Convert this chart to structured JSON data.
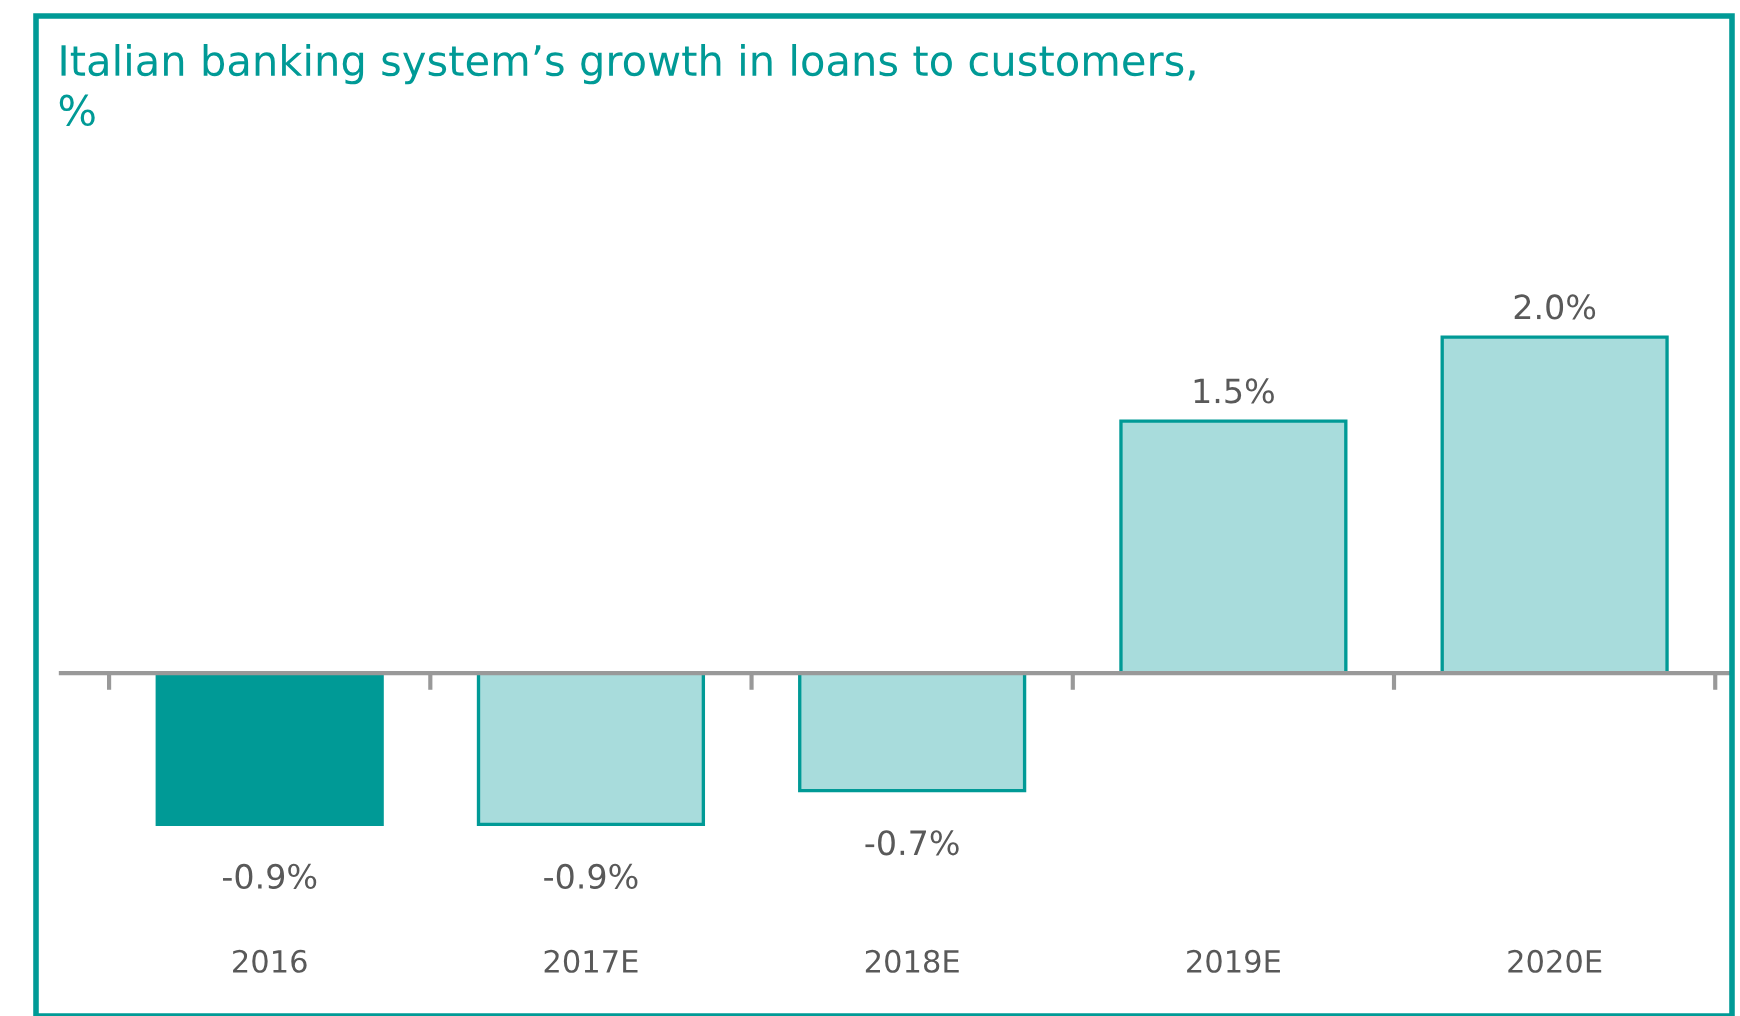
{
  "chart_data": {
    "type": "bar",
    "title": "Italian banking system’s growth in loans to customers,\n%",
    "categories": [
      "2016",
      "2017E",
      "2018E",
      "2019E",
      "2020E"
    ],
    "values": [
      -0.9,
      -0.9,
      -0.7,
      1.5,
      2.0
    ],
    "colors": [
      "#009a96",
      "#a8dcdc",
      "#a8dcdc",
      "#a8dcdc",
      "#a8dcdc"
    ],
    "value_labels": [
      "-0.9%",
      "-0.9%",
      "-0.7%",
      "1.5%",
      "2.0%"
    ],
    "grid": false,
    "legend": false
  }
}
